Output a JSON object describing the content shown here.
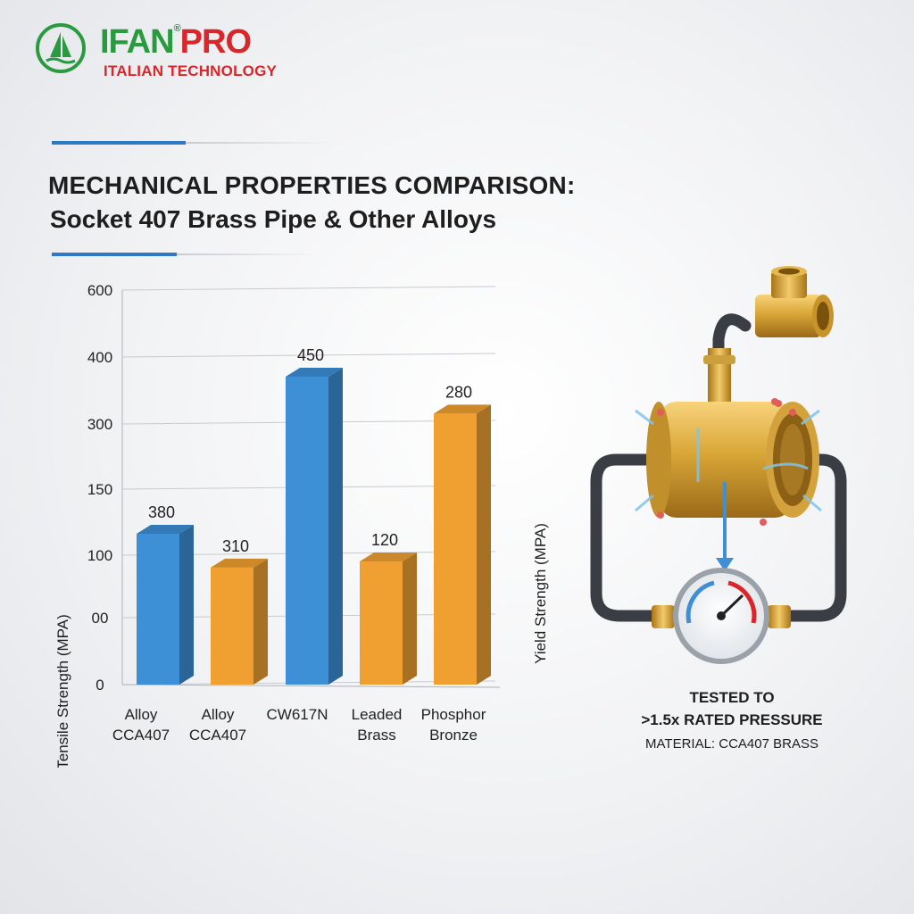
{
  "brand": {
    "name_part1": "IFAN",
    "name_part2": "PRO",
    "registered": "®",
    "tagline": "ITALIAN TECHNOLOGY",
    "green": "#2a9a40",
    "red": "#d8262a"
  },
  "title": {
    "line1": "MECHANICAL PROPERTIES COMPARISON:",
    "line2": "Socket 407 Brass Pipe & Other Alloys"
  },
  "chart_data": {
    "type": "bar",
    "categories": [
      {
        "line1": "Alloy",
        "line2": "CCA407"
      },
      {
        "line1": "Alloy",
        "line2": "CCA407"
      },
      {
        "line1": "CW617N",
        "line2": ""
      },
      {
        "line1": "Leaded",
        "line2": "Brass"
      },
      {
        "line1": "Phosphor",
        "line2": "Bronze"
      }
    ],
    "data_labels": [
      "380",
      "310",
      "450",
      "120",
      "280"
    ],
    "bar_levels": [
      0.49,
      0.38,
      1.0,
      0.4,
      0.88
    ],
    "bar_colors": [
      "#3d8fd6",
      "#f0a030",
      "#3d8fd6",
      "#f0a030",
      "#f0a030"
    ],
    "ylabel_left": "Tensile Strength (MPA)",
    "ylabel_right": "Yield Strength (MPA)",
    "y_tick_labels": [
      "0",
      "00",
      "100",
      "150",
      "300",
      "400",
      "600"
    ],
    "grid": true
  },
  "illustration": {
    "icon": "brass-pipe-pressure-test-icon",
    "caption_line1": "TESTED TO",
    "caption_line2": ">1.5x RATED PRESSURE",
    "caption_line3": "MATERIAL: CCA407 BRASS"
  }
}
